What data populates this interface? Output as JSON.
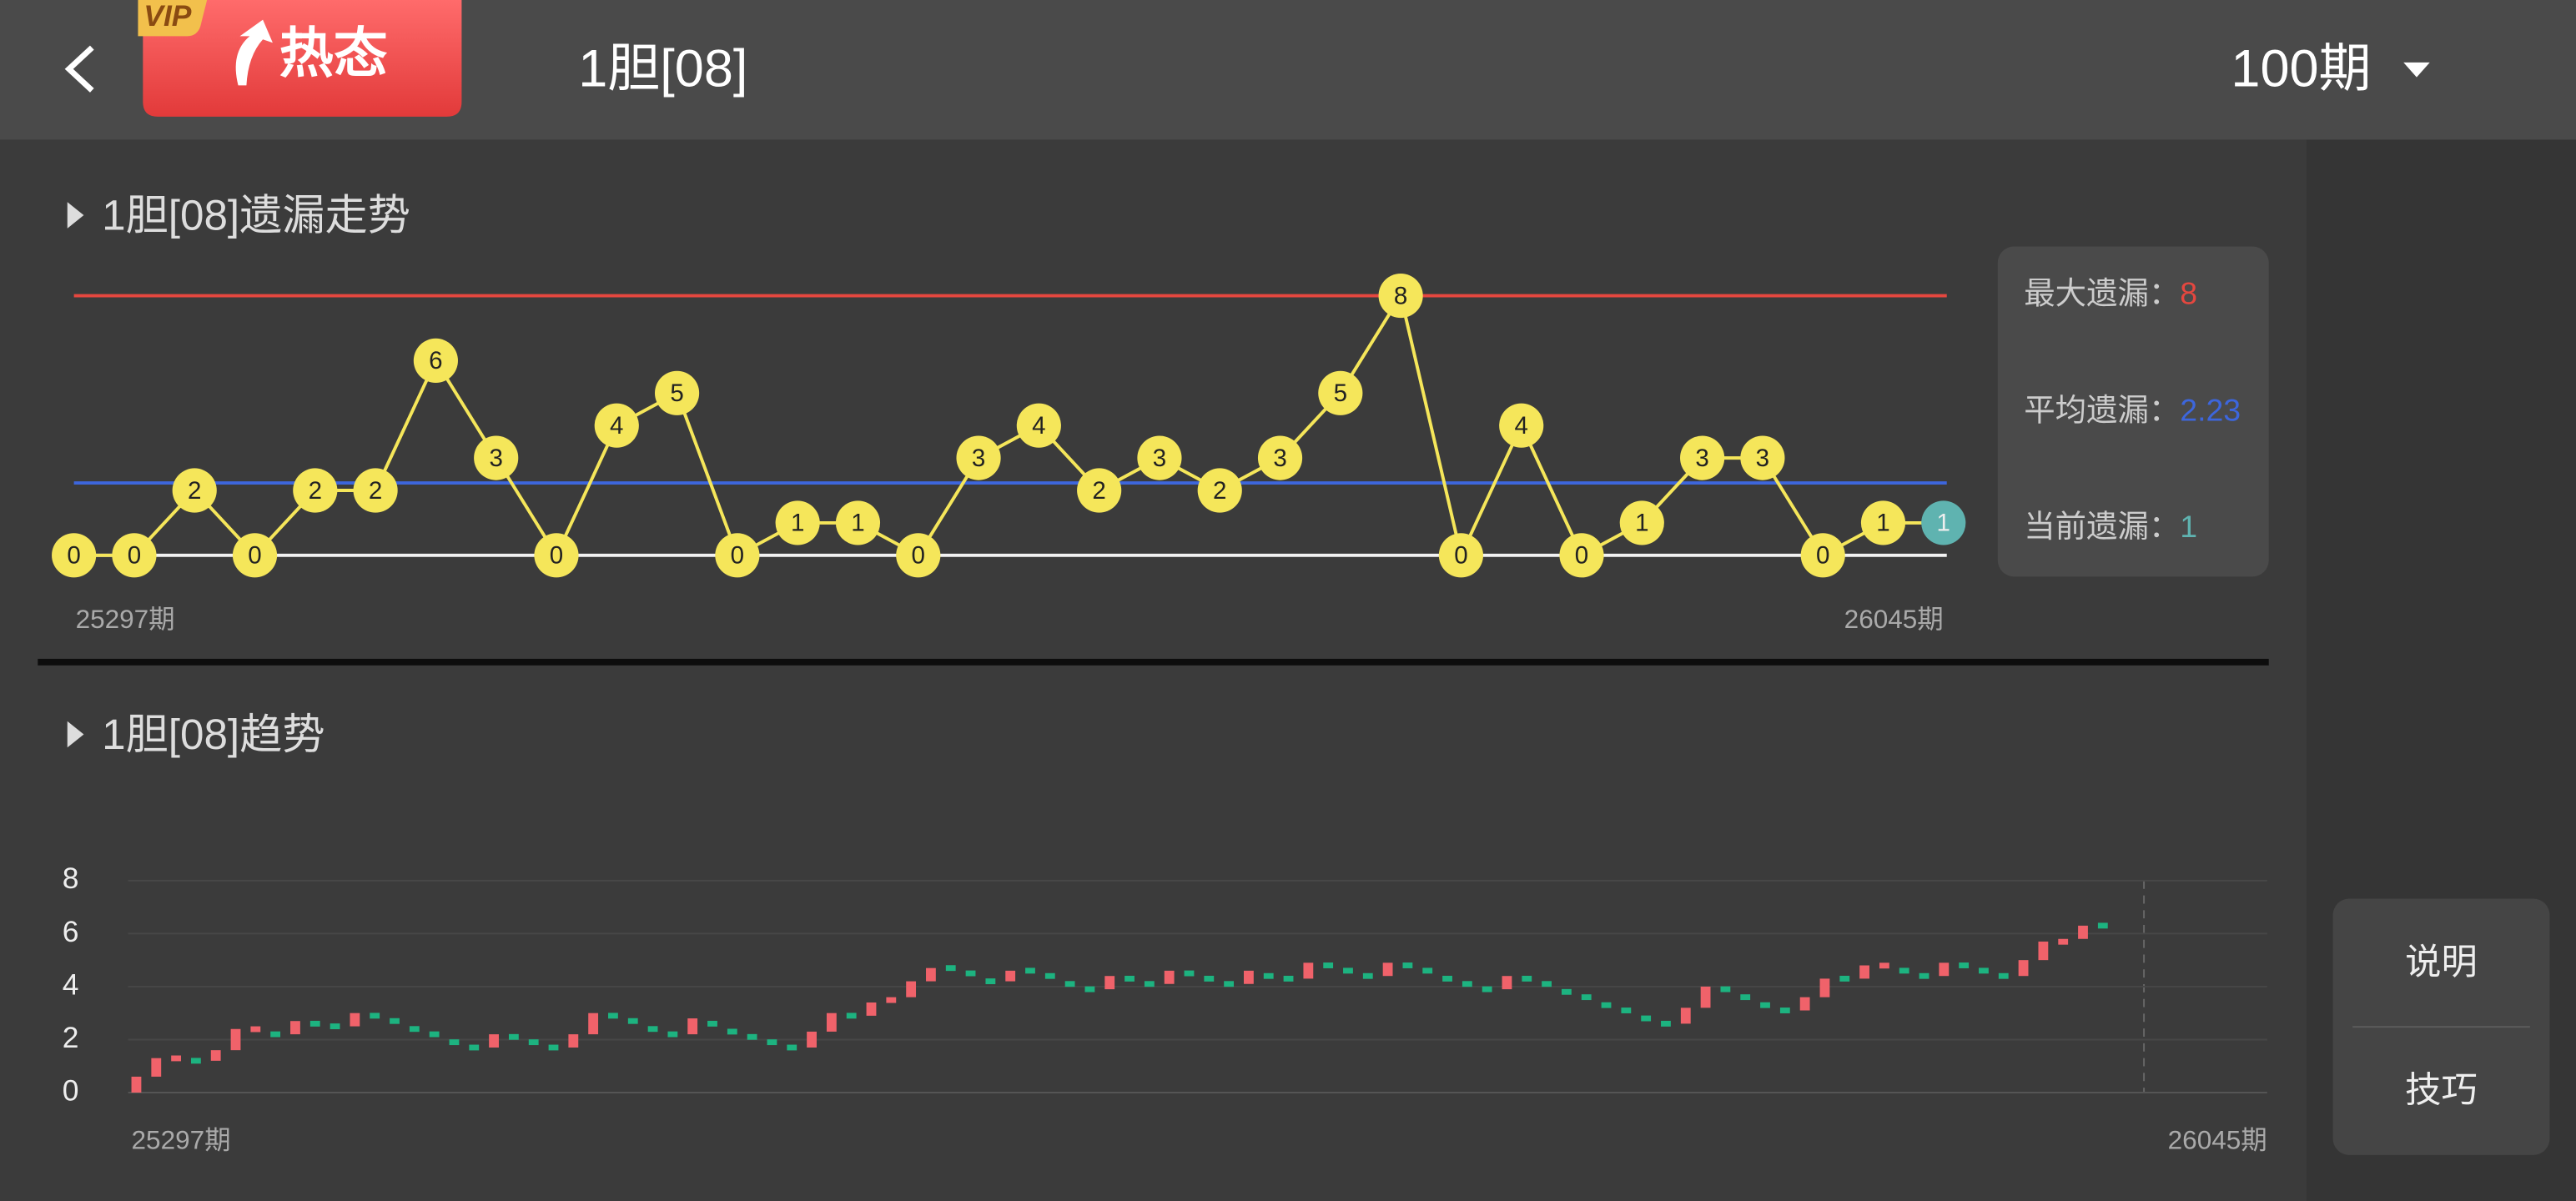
{
  "header": {
    "vip": "VIP",
    "hot_button": "热态",
    "title": "1胆[08]",
    "period_select": "100期"
  },
  "side_buttons": [
    "说明",
    "技巧"
  ],
  "chart_data": [
    {
      "type": "line",
      "title": "1胆[08]遗漏走势",
      "categories": [
        "25297期",
        null,
        null,
        null,
        null,
        null,
        null,
        null,
        null,
        null,
        null,
        null,
        null,
        null,
        null,
        null,
        null,
        null,
        null,
        null,
        null,
        null,
        null,
        null,
        null,
        null,
        null,
        null,
        null,
        null,
        null,
        "26045期"
      ],
      "values": [
        0,
        0,
        2,
        0,
        2,
        2,
        6,
        3,
        0,
        4,
        5,
        0,
        1,
        1,
        0,
        3,
        4,
        2,
        3,
        2,
        3,
        5,
        8,
        0,
        4,
        0,
        1,
        3,
        3,
        0,
        1,
        1
      ],
      "color": "#f5e65a",
      "current_color": "#5fb3b0",
      "ylim": [
        0,
        8
      ],
      "stats": [
        {
          "label": "最大遗漏：",
          "value": 8,
          "color": "#e5473f"
        },
        {
          "label": "平均遗漏：",
          "value": 2.23,
          "color": "#3d66dc"
        },
        {
          "label": "当前遗漏：",
          "value": 1,
          "color": "#5fb3b0"
        }
      ]
    },
    {
      "type": "trend",
      "title": "1胆[08]趋势",
      "categories": [
        "25297期",
        null,
        null,
        null,
        null,
        null,
        null,
        null,
        null,
        null,
        null,
        null,
        null,
        null,
        null,
        null,
        null,
        null,
        null,
        null,
        null,
        null,
        null,
        null,
        null,
        null,
        null,
        null,
        null,
        null,
        null,
        null,
        null,
        null,
        null,
        null,
        null,
        null,
        null,
        null,
        null,
        null,
        null,
        null,
        null,
        null,
        null,
        null,
        null,
        null,
        null,
        null,
        null,
        null,
        null,
        null,
        null,
        null,
        null,
        null,
        null,
        null,
        null,
        null,
        null,
        null,
        null,
        null,
        null,
        null,
        null,
        null,
        null,
        null,
        null,
        null,
        null,
        null,
        null,
        null,
        null,
        null,
        null,
        null,
        null,
        null,
        null,
        null,
        null,
        null,
        null,
        null,
        null,
        null,
        null,
        null,
        null,
        null,
        null,
        "26045期"
      ],
      "values": [
        0.6,
        1.3,
        1.4,
        1.2,
        1.6,
        2.4,
        2.5,
        2.2,
        2.7,
        2.6,
        2.5,
        3.0,
        2.9,
        2.7,
        2.4,
        2.2,
        1.9,
        1.7,
        2.2,
        2.1,
        1.9,
        1.7,
        2.2,
        3.0,
        2.9,
        2.7,
        2.4,
        2.2,
        2.8,
        2.6,
        2.3,
        2.1,
        1.9,
        1.7,
        2.3,
        3.0,
        2.9,
        3.4,
        3.6,
        4.2,
        4.7,
        4.7,
        4.5,
        4.2,
        4.6,
        4.6,
        4.4,
        4.1,
        3.9,
        4.4,
        4.3,
        4.1,
        4.6,
        4.5,
        4.3,
        4.1,
        4.6,
        4.4,
        4.3,
        4.9,
        4.8,
        4.6,
        4.4,
        4.9,
        4.8,
        4.6,
        4.3,
        4.1,
        3.9,
        4.4,
        4.3,
        4.1,
        3.8,
        3.6,
        3.3,
        3.1,
        2.8,
        2.6,
        3.2,
        4.0,
        3.9,
        3.6,
        3.3,
        3.1,
        3.6,
        4.3,
        4.3,
        4.8,
        4.9,
        4.6,
        4.4,
        4.9,
        4.8,
        4.6,
        4.4,
        5.0,
        5.7,
        5.8,
        6.3,
        6.3
      ],
      "up_color": "#f0626a",
      "down_color": "#1db380",
      "ylim": [
        0,
        8
      ],
      "yticks": [
        0,
        2,
        4,
        6,
        8
      ],
      "grid": true
    }
  ]
}
